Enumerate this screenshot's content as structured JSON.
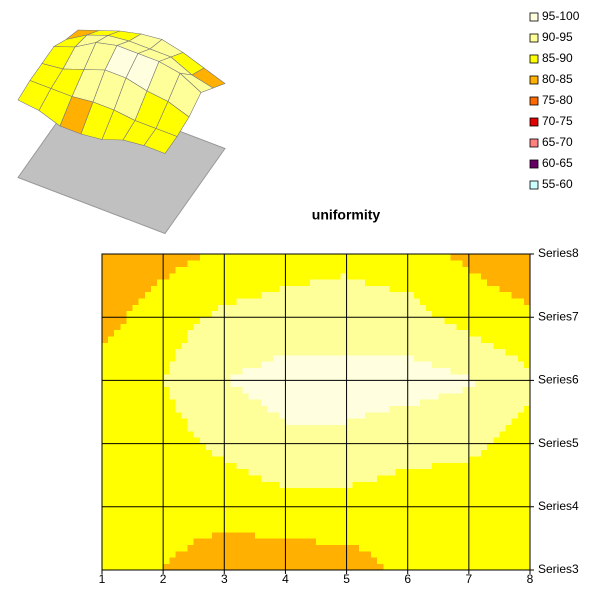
{
  "chart_data": {
    "type": "contour",
    "title": "uniformity",
    "categories": [
      "1",
      "2",
      "3",
      "4",
      "5",
      "6",
      "7",
      "8"
    ],
    "series": [
      {
        "name": "Series3",
        "values": [
          86,
          85,
          82,
          82,
          83,
          86,
          87,
          87
        ]
      },
      {
        "name": "Series4",
        "values": [
          87,
          87,
          87,
          88,
          88,
          87,
          87,
          87
        ]
      },
      {
        "name": "Series5",
        "values": [
          87,
          88,
          91,
          94,
          94,
          92,
          91,
          88
        ]
      },
      {
        "name": "Series6",
        "values": [
          87,
          90,
          95,
          97,
          97,
          97,
          95.5,
          91
        ]
      },
      {
        "name": "Series7",
        "values": [
          83,
          88,
          91,
          92,
          92,
          92,
          88,
          86
        ]
      },
      {
        "name": "Series8",
        "values": [
          80,
          83,
          86,
          88,
          89,
          87,
          84,
          81
        ]
      }
    ],
    "bands": [
      {
        "name": "95-100",
        "color": "#ffffe0"
      },
      {
        "name": "90-95",
        "color": "#ffff99"
      },
      {
        "name": "85-90",
        "color": "#ffff00"
      },
      {
        "name": "80-85",
        "color": "#ffb000"
      },
      {
        "name": "75-80",
        "color": "#ff6a00"
      },
      {
        "name": "70-75",
        "color": "#e00000"
      },
      {
        "name": "65-70",
        "color": "#ff8080"
      },
      {
        "name": "60-65",
        "color": "#660066"
      },
      {
        "name": "55-60",
        "color": "#ccffff"
      }
    ]
  }
}
